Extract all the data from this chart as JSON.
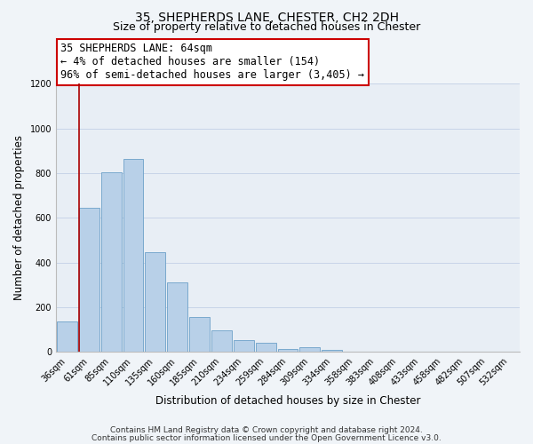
{
  "title": "35, SHEPHERDS LANE, CHESTER, CH2 2DH",
  "subtitle": "Size of property relative to detached houses in Chester",
  "xlabel": "Distribution of detached houses by size in Chester",
  "ylabel": "Number of detached properties",
  "bin_labels": [
    "36sqm",
    "61sqm",
    "85sqm",
    "110sqm",
    "135sqm",
    "160sqm",
    "185sqm",
    "210sqm",
    "234sqm",
    "259sqm",
    "284sqm",
    "309sqm",
    "334sqm",
    "358sqm",
    "383sqm",
    "408sqm",
    "433sqm",
    "458sqm",
    "482sqm",
    "507sqm",
    "532sqm"
  ],
  "bar_values": [
    135,
    645,
    805,
    862,
    447,
    310,
    158,
    97,
    53,
    42,
    15,
    22,
    8,
    2,
    0,
    0,
    0,
    0,
    0,
    0,
    0
  ],
  "bar_color": "#b8d0e8",
  "bar_edge_color": "#6ca0c8",
  "ylim": [
    0,
    1200
  ],
  "yticks": [
    0,
    200,
    400,
    600,
    800,
    1000,
    1200
  ],
  "property_line_color": "#aa0000",
  "annotation_line1": "35 SHEPHERDS LANE: 64sqm",
  "annotation_line2": "← 4% of detached houses are smaller (154)",
  "annotation_line3": "96% of semi-detached houses are larger (3,405) →",
  "footer_line1": "Contains HM Land Registry data © Crown copyright and database right 2024.",
  "footer_line2": "Contains public sector information licensed under the Open Government Licence v3.0.",
  "background_color": "#f0f4f8",
  "plot_background_color": "#e8eef5",
  "grid_color": "#c8d4e8",
  "title_fontsize": 10,
  "subtitle_fontsize": 9,
  "axis_label_fontsize": 8.5,
  "tick_fontsize": 7,
  "annotation_fontsize": 8.5,
  "footer_fontsize": 6.5
}
